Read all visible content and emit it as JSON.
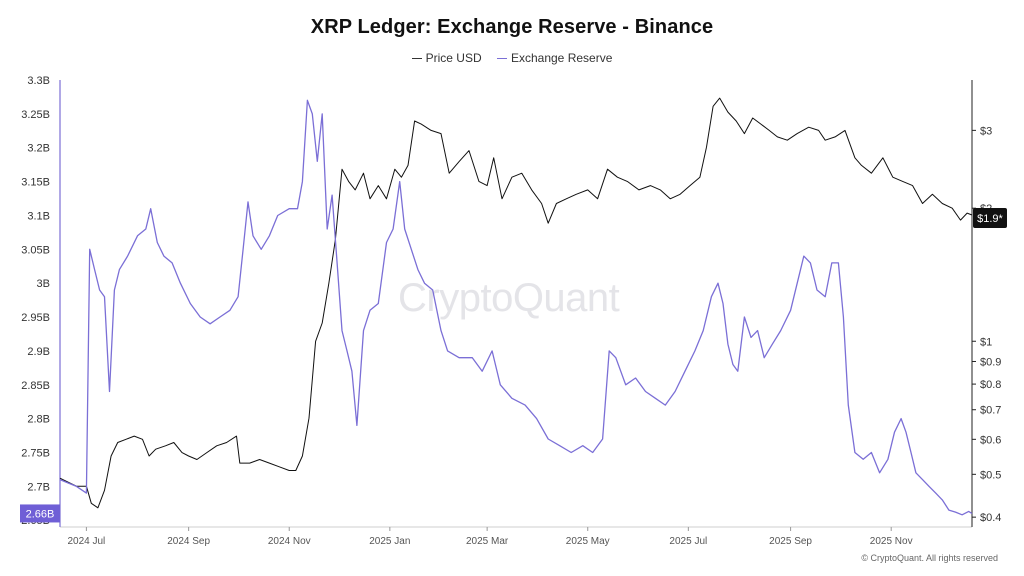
{
  "chart_data": {
    "type": "line",
    "title": "XRP Ledger: Exchange Reserve - Binance",
    "legend": [
      "Price USD",
      "Exchange Reserve"
    ],
    "legend_position": "top-center",
    "x_range": [
      "2024-06-15",
      "2025-12-20"
    ],
    "x_ticks": [
      {
        "label": "2024 Jul",
        "date": "2024-07-01"
      },
      {
        "label": "2024 Sep",
        "date": "2024-09-01"
      },
      {
        "label": "2024 Nov",
        "date": "2024-11-01"
      },
      {
        "label": "2025 Jan",
        "date": "2025-01-01"
      },
      {
        "label": "2025 Mar",
        "date": "2025-03-01"
      },
      {
        "label": "2025 May",
        "date": "2025-05-01"
      },
      {
        "label": "2025 Jul",
        "date": "2025-07-01"
      },
      {
        "label": "2025 Sep",
        "date": "2025-09-01"
      },
      {
        "label": "2025 Nov",
        "date": "2025-11-01"
      }
    ],
    "left_axis": {
      "scale": "linear",
      "range": [
        2.64,
        3.3
      ],
      "ticks": [
        {
          "label": "3.3B",
          "value": 3.3
        },
        {
          "label": "3.25B",
          "value": 3.25
        },
        {
          "label": "3.2B",
          "value": 3.2
        },
        {
          "label": "3.15B",
          "value": 3.15
        },
        {
          "label": "3.1B",
          "value": 3.1
        },
        {
          "label": "3.05B",
          "value": 3.05
        },
        {
          "label": "3B",
          "value": 3.0
        },
        {
          "label": "2.95B",
          "value": 2.95
        },
        {
          "label": "2.9B",
          "value": 2.9
        },
        {
          "label": "2.85B",
          "value": 2.85
        },
        {
          "label": "2.8B",
          "value": 2.8
        },
        {
          "label": "2.75B",
          "value": 2.75
        },
        {
          "label": "2.7B",
          "value": 2.7
        },
        {
          "label": "2.65B",
          "value": 2.65
        }
      ],
      "current_label": "2.66B",
      "current_value": 2.66,
      "current_color": "#6f5fd6"
    },
    "right_axis": {
      "scale": "log",
      "range": [
        0.38,
        3.9
      ],
      "ticks": [
        {
          "label": "$3",
          "value": 3
        },
        {
          "label": "$2",
          "value": 2
        },
        {
          "label": "$1",
          "value": 1
        },
        {
          "label": "$0.9",
          "value": 0.9
        },
        {
          "label": "$0.8",
          "value": 0.8
        },
        {
          "label": "$0.7",
          "value": 0.7
        },
        {
          "label": "$0.6",
          "value": 0.6
        },
        {
          "label": "$0.5",
          "value": 0.5
        },
        {
          "label": "$0.4",
          "value": 0.4
        }
      ],
      "current_label": "$1.9*",
      "current_value": 1.9,
      "current_color": "#111111"
    },
    "series": [
      {
        "name": "Price USD",
        "axis": "right",
        "color": "#111111",
        "points": [
          [
            "2024-06-15",
            0.49
          ],
          [
            "2024-06-20",
            0.48
          ],
          [
            "2024-06-25",
            0.47
          ],
          [
            "2024-07-01",
            0.47
          ],
          [
            "2024-07-04",
            0.43
          ],
          [
            "2024-07-08",
            0.42
          ],
          [
            "2024-07-12",
            0.46
          ],
          [
            "2024-07-16",
            0.55
          ],
          [
            "2024-07-20",
            0.59
          ],
          [
            "2024-07-25",
            0.6
          ],
          [
            "2024-07-30",
            0.61
          ],
          [
            "2024-08-04",
            0.6
          ],
          [
            "2024-08-08",
            0.55
          ],
          [
            "2024-08-12",
            0.57
          ],
          [
            "2024-08-18",
            0.58
          ],
          [
            "2024-08-23",
            0.59
          ],
          [
            "2024-08-28",
            0.56
          ],
          [
            "2024-09-01",
            0.55
          ],
          [
            "2024-09-06",
            0.54
          ],
          [
            "2024-09-12",
            0.56
          ],
          [
            "2024-09-18",
            0.58
          ],
          [
            "2024-09-24",
            0.59
          ],
          [
            "2024-09-30",
            0.61
          ],
          [
            "2024-10-02",
            0.53
          ],
          [
            "2024-10-08",
            0.53
          ],
          [
            "2024-10-14",
            0.54
          ],
          [
            "2024-10-20",
            0.53
          ],
          [
            "2024-10-26",
            0.52
          ],
          [
            "2024-11-01",
            0.51
          ],
          [
            "2024-11-05",
            0.51
          ],
          [
            "2024-11-09",
            0.55
          ],
          [
            "2024-11-13",
            0.67
          ],
          [
            "2024-11-17",
            1.0
          ],
          [
            "2024-11-21",
            1.1
          ],
          [
            "2024-11-25",
            1.35
          ],
          [
            "2024-11-29",
            1.7
          ],
          [
            "2024-12-03",
            2.45
          ],
          [
            "2024-12-07",
            2.3
          ],
          [
            "2024-12-11",
            2.2
          ],
          [
            "2024-12-16",
            2.4
          ],
          [
            "2024-12-20",
            2.1
          ],
          [
            "2024-12-25",
            2.25
          ],
          [
            "2024-12-30",
            2.1
          ],
          [
            "2025-01-04",
            2.45
          ],
          [
            "2025-01-08",
            2.35
          ],
          [
            "2025-01-12",
            2.5
          ],
          [
            "2025-01-16",
            3.15
          ],
          [
            "2025-01-20",
            3.1
          ],
          [
            "2025-01-26",
            3.0
          ],
          [
            "2025-02-01",
            2.95
          ],
          [
            "2025-02-06",
            2.4
          ],
          [
            "2025-02-12",
            2.55
          ],
          [
            "2025-02-18",
            2.7
          ],
          [
            "2025-02-24",
            2.3
          ],
          [
            "2025-03-01",
            2.25
          ],
          [
            "2025-03-05",
            2.6
          ],
          [
            "2025-03-10",
            2.1
          ],
          [
            "2025-03-16",
            2.35
          ],
          [
            "2025-03-22",
            2.4
          ],
          [
            "2025-03-28",
            2.2
          ],
          [
            "2025-04-03",
            2.05
          ],
          [
            "2025-04-07",
            1.85
          ],
          [
            "2025-04-12",
            2.05
          ],
          [
            "2025-04-18",
            2.1
          ],
          [
            "2025-04-24",
            2.15
          ],
          [
            "2025-05-01",
            2.2
          ],
          [
            "2025-05-07",
            2.1
          ],
          [
            "2025-05-13",
            2.45
          ],
          [
            "2025-05-19",
            2.35
          ],
          [
            "2025-05-25",
            2.3
          ],
          [
            "2025-06-01",
            2.2
          ],
          [
            "2025-06-08",
            2.25
          ],
          [
            "2025-06-14",
            2.2
          ],
          [
            "2025-06-20",
            2.1
          ],
          [
            "2025-06-26",
            2.15
          ],
          [
            "2025-07-02",
            2.25
          ],
          [
            "2025-07-08",
            2.35
          ],
          [
            "2025-07-12",
            2.75
          ],
          [
            "2025-07-16",
            3.4
          ],
          [
            "2025-07-20",
            3.55
          ],
          [
            "2025-07-25",
            3.3
          ],
          [
            "2025-07-30",
            3.15
          ],
          [
            "2025-08-04",
            2.95
          ],
          [
            "2025-08-09",
            3.2
          ],
          [
            "2025-08-14",
            3.1
          ],
          [
            "2025-08-19",
            3.0
          ],
          [
            "2025-08-24",
            2.9
          ],
          [
            "2025-08-30",
            2.85
          ],
          [
            "2025-09-05",
            2.95
          ],
          [
            "2025-09-12",
            3.05
          ],
          [
            "2025-09-18",
            3.0
          ],
          [
            "2025-09-22",
            2.85
          ],
          [
            "2025-09-28",
            2.9
          ],
          [
            "2025-10-04",
            3.0
          ],
          [
            "2025-10-10",
            2.6
          ],
          [
            "2025-10-14",
            2.5
          ],
          [
            "2025-10-20",
            2.4
          ],
          [
            "2025-10-27",
            2.6
          ],
          [
            "2025-11-02",
            2.35
          ],
          [
            "2025-11-08",
            2.3
          ],
          [
            "2025-11-14",
            2.25
          ],
          [
            "2025-11-20",
            2.05
          ],
          [
            "2025-11-26",
            2.15
          ],
          [
            "2025-12-02",
            2.05
          ],
          [
            "2025-12-08",
            2.0
          ],
          [
            "2025-12-13",
            1.88
          ],
          [
            "2025-12-17",
            1.95
          ],
          [
            "2025-12-20",
            1.93
          ]
        ]
      },
      {
        "name": "Exchange Reserve",
        "axis": "left",
        "color": "#7b6fd6",
        "points": [
          [
            "2024-06-15",
            2.71
          ],
          [
            "2024-06-20",
            2.705
          ],
          [
            "2024-06-25",
            2.7
          ],
          [
            "2024-07-01",
            2.69
          ],
          [
            "2024-07-03",
            3.05
          ],
          [
            "2024-07-06",
            3.02
          ],
          [
            "2024-07-09",
            2.99
          ],
          [
            "2024-07-12",
            2.98
          ],
          [
            "2024-07-15",
            2.84
          ],
          [
            "2024-07-18",
            2.99
          ],
          [
            "2024-07-21",
            3.02
          ],
          [
            "2024-07-26",
            3.04
          ],
          [
            "2024-08-01",
            3.07
          ],
          [
            "2024-08-06",
            3.08
          ],
          [
            "2024-08-09",
            3.11
          ],
          [
            "2024-08-13",
            3.06
          ],
          [
            "2024-08-17",
            3.04
          ],
          [
            "2024-08-22",
            3.03
          ],
          [
            "2024-08-27",
            3.0
          ],
          [
            "2024-09-02",
            2.97
          ],
          [
            "2024-09-08",
            2.95
          ],
          [
            "2024-09-14",
            2.94
          ],
          [
            "2024-09-20",
            2.95
          ],
          [
            "2024-09-26",
            2.96
          ],
          [
            "2024-10-01",
            2.98
          ],
          [
            "2024-10-04",
            3.05
          ],
          [
            "2024-10-07",
            3.12
          ],
          [
            "2024-10-10",
            3.07
          ],
          [
            "2024-10-15",
            3.05
          ],
          [
            "2024-10-20",
            3.07
          ],
          [
            "2024-10-25",
            3.1
          ],
          [
            "2024-11-01",
            3.11
          ],
          [
            "2024-11-06",
            3.11
          ],
          [
            "2024-11-09",
            3.15
          ],
          [
            "2024-11-12",
            3.27
          ],
          [
            "2024-11-15",
            3.25
          ],
          [
            "2024-11-18",
            3.18
          ],
          [
            "2024-11-21",
            3.25
          ],
          [
            "2024-11-24",
            3.08
          ],
          [
            "2024-11-27",
            3.13
          ],
          [
            "2024-11-30",
            3.03
          ],
          [
            "2024-12-03",
            2.93
          ],
          [
            "2024-12-06",
            2.9
          ],
          [
            "2024-12-09",
            2.87
          ],
          [
            "2024-12-12",
            2.79
          ],
          [
            "2024-12-16",
            2.93
          ],
          [
            "2024-12-20",
            2.96
          ],
          [
            "2024-12-25",
            2.97
          ],
          [
            "2024-12-30",
            3.06
          ],
          [
            "2025-01-03",
            3.08
          ],
          [
            "2025-01-07",
            3.15
          ],
          [
            "2025-01-10",
            3.08
          ],
          [
            "2025-01-14",
            3.05
          ],
          [
            "2025-01-18",
            3.02
          ],
          [
            "2025-01-22",
            3.0
          ],
          [
            "2025-01-27",
            2.99
          ],
          [
            "2025-02-01",
            2.93
          ],
          [
            "2025-02-05",
            2.9
          ],
          [
            "2025-02-12",
            2.89
          ],
          [
            "2025-02-20",
            2.89
          ],
          [
            "2025-02-26",
            2.87
          ],
          [
            "2025-03-04",
            2.9
          ],
          [
            "2025-03-09",
            2.85
          ],
          [
            "2025-03-16",
            2.83
          ],
          [
            "2025-03-24",
            2.82
          ],
          [
            "2025-03-31",
            2.8
          ],
          [
            "2025-04-07",
            2.77
          ],
          [
            "2025-04-14",
            2.76
          ],
          [
            "2025-04-21",
            2.75
          ],
          [
            "2025-04-28",
            2.76
          ],
          [
            "2025-05-04",
            2.75
          ],
          [
            "2025-05-10",
            2.77
          ],
          [
            "2025-05-14",
            2.9
          ],
          [
            "2025-05-18",
            2.89
          ],
          [
            "2025-05-24",
            2.85
          ],
          [
            "2025-05-30",
            2.86
          ],
          [
            "2025-06-05",
            2.84
          ],
          [
            "2025-06-11",
            2.83
          ],
          [
            "2025-06-17",
            2.82
          ],
          [
            "2025-06-23",
            2.84
          ],
          [
            "2025-06-29",
            2.87
          ],
          [
            "2025-07-05",
            2.9
          ],
          [
            "2025-07-10",
            2.93
          ],
          [
            "2025-07-15",
            2.98
          ],
          [
            "2025-07-19",
            3.0
          ],
          [
            "2025-07-22",
            2.97
          ],
          [
            "2025-07-25",
            2.91
          ],
          [
            "2025-07-28",
            2.88
          ],
          [
            "2025-07-31",
            2.87
          ],
          [
            "2025-08-04",
            2.95
          ],
          [
            "2025-08-08",
            2.92
          ],
          [
            "2025-08-12",
            2.93
          ],
          [
            "2025-08-16",
            2.89
          ],
          [
            "2025-08-21",
            2.91
          ],
          [
            "2025-08-26",
            2.93
          ],
          [
            "2025-09-01",
            2.96
          ],
          [
            "2025-09-05",
            3.0
          ],
          [
            "2025-09-09",
            3.04
          ],
          [
            "2025-09-13",
            3.03
          ],
          [
            "2025-09-17",
            2.99
          ],
          [
            "2025-09-22",
            2.98
          ],
          [
            "2025-09-26",
            3.03
          ],
          [
            "2025-09-30",
            3.03
          ],
          [
            "2025-10-03",
            2.95
          ],
          [
            "2025-10-06",
            2.82
          ],
          [
            "2025-10-10",
            2.75
          ],
          [
            "2025-10-15",
            2.74
          ],
          [
            "2025-10-20",
            2.75
          ],
          [
            "2025-10-25",
            2.72
          ],
          [
            "2025-10-30",
            2.74
          ],
          [
            "2025-11-03",
            2.78
          ],
          [
            "2025-11-07",
            2.8
          ],
          [
            "2025-11-10",
            2.78
          ],
          [
            "2025-11-13",
            2.75
          ],
          [
            "2025-11-16",
            2.72
          ],
          [
            "2025-11-20",
            2.71
          ],
          [
            "2025-11-24",
            2.7
          ],
          [
            "2025-11-28",
            2.69
          ],
          [
            "2025-12-02",
            2.68
          ],
          [
            "2025-12-06",
            2.665
          ],
          [
            "2025-12-10",
            2.662
          ],
          [
            "2025-12-14",
            2.658
          ],
          [
            "2025-12-18",
            2.663
          ],
          [
            "2025-12-20",
            2.66
          ]
        ]
      }
    ]
  },
  "watermark": "CryptoQuant",
  "copyright": "© CryptoQuant. All rights reserved"
}
